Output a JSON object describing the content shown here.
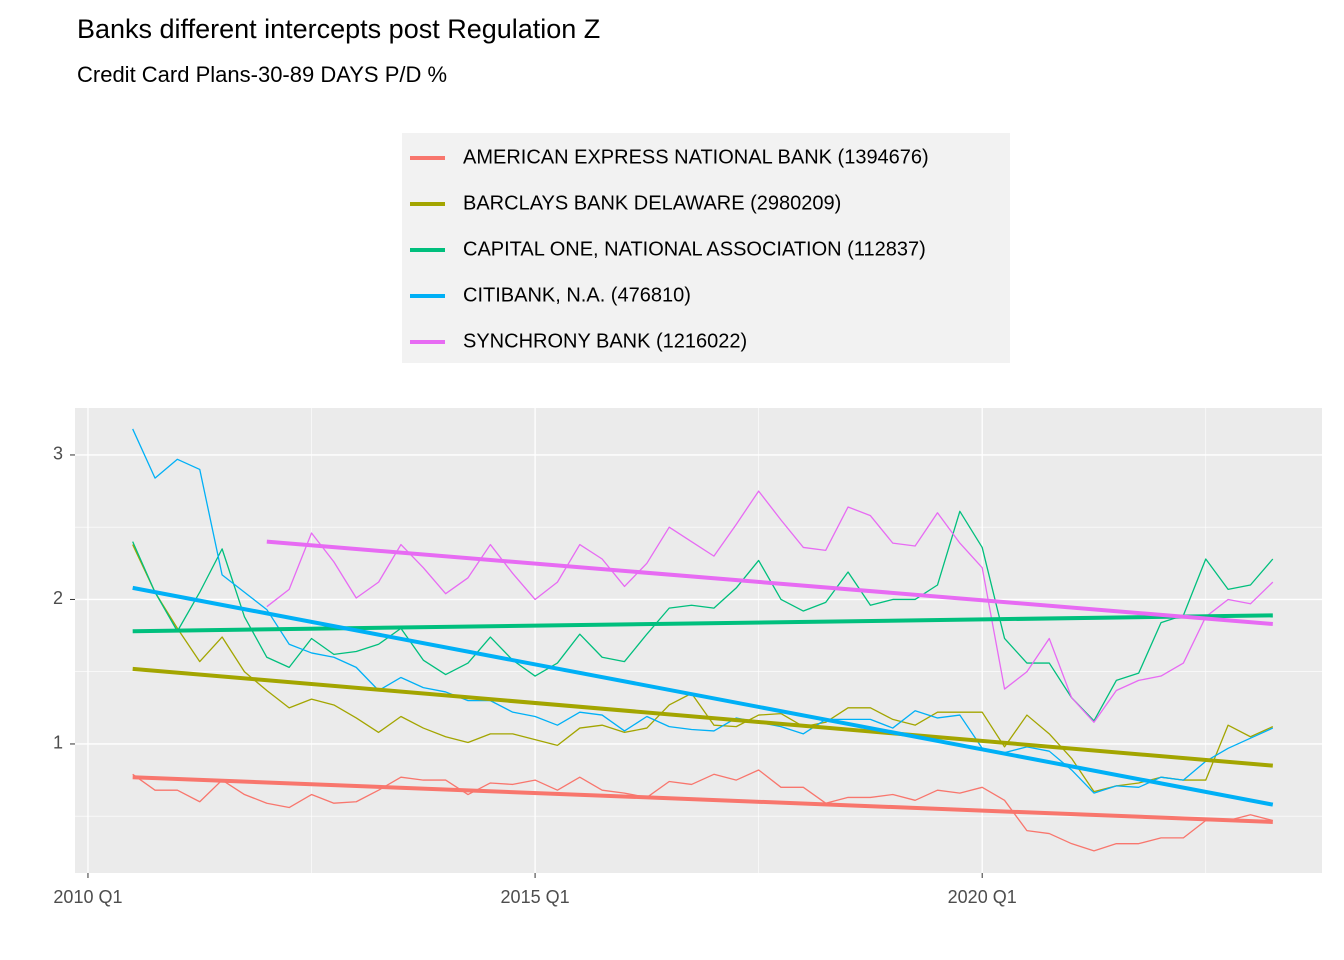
{
  "chart_data": {
    "type": "line",
    "title": "Banks different intercepts post Regulation Z",
    "subtitle": "Credit Card Plans-30-89 DAYS P/D %",
    "x": [
      2010.5,
      2010.75,
      2011,
      2011.25,
      2011.5,
      2011.75,
      2012,
      2012.25,
      2012.5,
      2012.75,
      2013,
      2013.25,
      2013.5,
      2013.75,
      2014,
      2014.25,
      2014.5,
      2014.75,
      2015,
      2015.25,
      2015.5,
      2015.75,
      2016,
      2016.25,
      2016.5,
      2016.75,
      2017,
      2017.25,
      2017.5,
      2017.75,
      2018,
      2018.25,
      2018.5,
      2018.75,
      2019,
      2019.25,
      2019.5,
      2019.75,
      2020,
      2020.25,
      2020.5,
      2020.75,
      2021,
      2021.25,
      2021.5,
      2021.75,
      2022,
      2022.25,
      2022.5,
      2022.75,
      2023,
      2023.25
    ],
    "series": [
      {
        "name": "AMERICAN EXPRESS NATIONAL BANK (1394676)",
        "color": "#F8766D",
        "values": [
          0.79,
          0.68,
          0.68,
          0.6,
          0.75,
          0.65,
          0.59,
          0.56,
          0.65,
          0.59,
          0.6,
          0.68,
          0.77,
          0.75,
          0.75,
          0.65,
          0.73,
          0.72,
          0.75,
          0.68,
          0.77,
          0.68,
          0.66,
          0.63,
          0.74,
          0.72,
          0.79,
          0.75,
          0.82,
          0.7,
          0.7,
          0.59,
          0.63,
          0.63,
          0.65,
          0.61,
          0.68,
          0.66,
          0.7,
          0.61,
          0.4,
          0.38,
          0.31,
          0.26,
          0.31,
          0.31,
          0.35,
          0.35,
          0.47,
          0.47,
          0.51,
          0.47
        ],
        "trend": [
          0.77,
          0.46
        ]
      },
      {
        "name": "BARCLAYS BANK DELAWARE (2980209)",
        "color": "#A3A500",
        "values": [
          2.38,
          2.05,
          1.8,
          1.57,
          1.74,
          1.5,
          1.37,
          1.25,
          1.31,
          1.27,
          1.18,
          1.08,
          1.19,
          1.11,
          1.05,
          1.01,
          1.07,
          1.07,
          1.03,
          0.99,
          1.11,
          1.13,
          1.08,
          1.11,
          1.27,
          1.35,
          1.13,
          1.12,
          1.2,
          1.21,
          1.12,
          1.15,
          1.25,
          1.25,
          1.17,
          1.13,
          1.22,
          1.22,
          1.22,
          0.98,
          1.2,
          1.07,
          0.9,
          0.67,
          0.71,
          0.73,
          0.77,
          0.75,
          0.75,
          1.13,
          1.05,
          1.12
        ],
        "trend": [
          1.52,
          0.85
        ]
      },
      {
        "name": "CAPITAL ONE, NATIONAL ASSOCIATION (112837)",
        "color": "#00BF7D",
        "values": [
          2.4,
          2.05,
          1.78,
          2.05,
          2.35,
          1.88,
          1.6,
          1.53,
          1.73,
          1.62,
          1.64,
          1.69,
          1.8,
          1.58,
          1.48,
          1.56,
          1.74,
          1.58,
          1.47,
          1.56,
          1.76,
          1.6,
          1.57,
          1.76,
          1.94,
          1.96,
          1.94,
          2.08,
          2.27,
          2.0,
          1.92,
          1.98,
          2.19,
          1.96,
          2.0,
          2.0,
          2.1,
          2.61,
          2.36,
          1.73,
          1.56,
          1.56,
          1.32,
          1.16,
          1.44,
          1.49,
          1.84,
          1.89,
          2.28,
          2.07,
          2.1,
          2.28
        ],
        "trend": [
          1.78,
          1.89
        ]
      },
      {
        "name": "CITIBANK, N.A. (476810)",
        "color": "#00B0F6",
        "values": [
          3.18,
          2.84,
          2.97,
          2.9,
          2.17,
          2.05,
          1.93,
          1.69,
          1.63,
          1.6,
          1.53,
          1.37,
          1.46,
          1.39,
          1.36,
          1.3,
          1.3,
          1.22,
          1.19,
          1.13,
          1.22,
          1.2,
          1.09,
          1.19,
          1.12,
          1.1,
          1.09,
          1.18,
          1.15,
          1.12,
          1.07,
          1.17,
          1.17,
          1.17,
          1.11,
          1.23,
          1.18,
          1.2,
          0.97,
          0.94,
          0.98,
          0.95,
          0.82,
          0.66,
          0.71,
          0.7,
          0.77,
          0.75,
          0.88,
          0.97,
          1.04,
          1.11
        ],
        "trend": [
          2.08,
          0.58
        ]
      },
      {
        "name": "SYNCHRONY BANK (1216022)",
        "color": "#E76BF3",
        "values": [
          null,
          null,
          null,
          null,
          null,
          null,
          1.95,
          2.07,
          2.46,
          2.26,
          2.01,
          2.12,
          2.38,
          2.22,
          2.04,
          2.15,
          2.38,
          2.18,
          2.0,
          2.12,
          2.38,
          2.28,
          2.09,
          2.25,
          2.5,
          2.4,
          2.3,
          2.52,
          2.75,
          2.55,
          2.36,
          2.34,
          2.64,
          2.58,
          2.39,
          2.37,
          2.6,
          2.39,
          2.22,
          1.38,
          1.5,
          1.73,
          1.32,
          1.15,
          1.37,
          1.44,
          1.47,
          1.56,
          1.88,
          2.0,
          1.97,
          2.12
        ],
        "trend": [
          2.4,
          1.83
        ]
      }
    ],
    "xlim": [
      2009.855,
      2023.8
    ],
    "xticks": [
      {
        "value": 2010,
        "label": "2010 Q1"
      },
      {
        "value": 2015,
        "label": "2015 Q1"
      },
      {
        "value": 2020,
        "label": "2020 Q1"
      }
    ],
    "x_minor": [
      2012.5,
      2017.5,
      2022.5
    ],
    "ylim": [
      0.107,
      3.325
    ],
    "yticks": [
      1,
      2,
      3
    ],
    "y_minor": [
      0.5,
      1.5,
      2.5
    ],
    "grid": true,
    "legend": "top"
  }
}
